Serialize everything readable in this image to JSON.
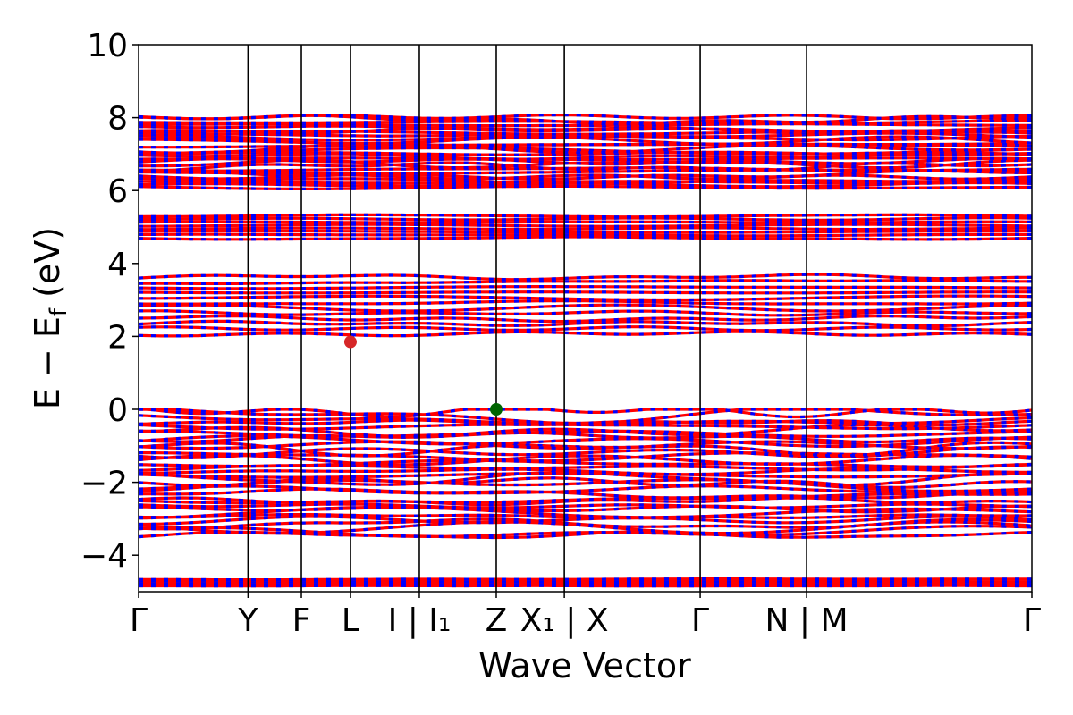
{
  "chart_data": {
    "type": "line",
    "title": "",
    "xlabel": "Wave Vector",
    "ylabel": "E − E_f (eV)",
    "ylabel_main": "E − E",
    "ylabel_sub": "f",
    "ylabel_unit": " (eV)",
    "ylim": [
      -5,
      10
    ],
    "xlim": [
      0,
      1
    ],
    "grid": false,
    "legend": "none",
    "y_ticks": [
      -4,
      -2,
      0,
      2,
      4,
      6,
      8,
      10
    ],
    "y_tick_labels": [
      "−4",
      "−2",
      "0",
      "2",
      "4",
      "6",
      "8",
      "10"
    ],
    "high_symmetry_points": [
      {
        "label": "Γ",
        "x": 0.0
      },
      {
        "label": "Y",
        "x": 0.1225
      },
      {
        "label": "F",
        "x": 0.1822
      },
      {
        "label": "L",
        "x": 0.2372
      },
      {
        "label": "I | I₁",
        "x": 0.3143
      },
      {
        "label": "Z",
        "x": 0.4004
      },
      {
        "label": "X₁ | X",
        "x": 0.4766
      },
      {
        "label": "Γ",
        "x": 0.6287
      },
      {
        "label": "N | M",
        "x": 0.7478
      },
      {
        "label": "Γ",
        "x": 1.0
      }
    ],
    "band_style": {
      "colors": [
        "#ff0000",
        "#0000ff"
      ],
      "description": "spin-up (red) and spin-down (blue) bands overlaid"
    },
    "conduction_band_minimum": {
      "x": 0.2372,
      "y": 1.85,
      "color": "#d62728"
    },
    "valence_band_maximum": {
      "x": 0.4004,
      "y": 0.0,
      "color": "#006400"
    },
    "band_groups": [
      {
        "name": "deep",
        "center": -4.75,
        "spread": 0.12,
        "count": 4
      },
      {
        "name": "valence",
        "center": -1.75,
        "spread": 1.75,
        "count": 34
      },
      {
        "name": "conduction_low",
        "center": 2.85,
        "spread": 0.85,
        "count": 12
      },
      {
        "name": "conduction_mid",
        "center": 5.0,
        "spread": 0.35,
        "count": 8
      },
      {
        "name": "conduction_high",
        "center": 7.05,
        "spread": 1.0,
        "count": 28
      }
    ]
  },
  "colors": {
    "spin_up": "#ff0000",
    "spin_down": "#0000ff",
    "axes": "#000000"
  }
}
